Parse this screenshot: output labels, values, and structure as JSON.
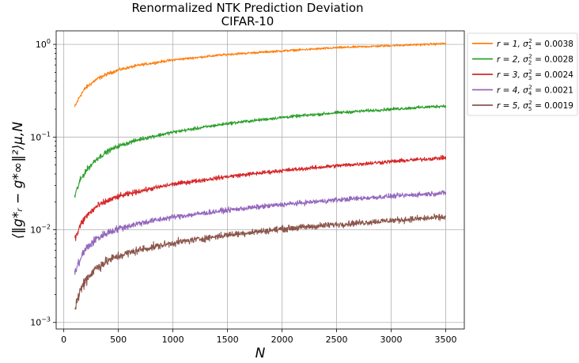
{
  "chart_data": {
    "type": "line",
    "title": "Renormalized NTK Prediction Deviation",
    "subtitle": "CIFAR-10",
    "xlabel": "N",
    "ylabel": "⟨‖g*ᵣ − g*∞‖²⟩μ,N",
    "xlim": [
      -70,
      3670
    ],
    "ylim": [
      0.00085,
      1.4
    ],
    "yscale": "log",
    "grid": true,
    "legend_position": "outside-right",
    "x_ticks": [
      0,
      500,
      1000,
      1500,
      2000,
      2500,
      3000,
      3500
    ],
    "x_tick_labels": [
      "0",
      "500",
      "1000",
      "1500",
      "2000",
      "2500",
      "3000",
      "3500"
    ],
    "y_ticks": [
      0.001,
      0.01,
      0.1,
      1
    ],
    "y_tick_labels": [
      {
        "base": "10",
        "exp": "−3"
      },
      {
        "base": "10",
        "exp": "−2"
      },
      {
        "base": "10",
        "exp": "−1"
      },
      {
        "base": "10",
        "exp": "0"
      }
    ],
    "x": [
      100,
      150,
      200,
      300,
      400,
      500,
      700,
      1000,
      1500,
      2000,
      2500,
      3000,
      3500
    ],
    "series": [
      {
        "name": "r = 1, σ₁² = 0.0038",
        "color": "#ff7f0e",
        "noise": 0.05,
        "values": [
          0.21,
          0.28,
          0.34,
          0.42,
          0.48,
          0.53,
          0.6,
          0.68,
          0.78,
          0.85,
          0.92,
          0.97,
          1.02
        ]
      },
      {
        "name": "r = 2, σ₂² = 0.0028",
        "color": "#2ca02c",
        "noise": 0.07,
        "values": [
          0.023,
          0.034,
          0.043,
          0.058,
          0.07,
          0.08,
          0.095,
          0.113,
          0.14,
          0.163,
          0.183,
          0.2,
          0.217
        ]
      },
      {
        "name": "r = 3, σ₃² = 0.0024",
        "color": "#d62728",
        "noise": 0.09,
        "values": [
          0.0078,
          0.011,
          0.0138,
          0.0178,
          0.0205,
          0.0228,
          0.0262,
          0.031,
          0.0375,
          0.0435,
          0.049,
          0.0545,
          0.06
        ]
      },
      {
        "name": "r = 4, σ₄² = 0.0021",
        "color": "#9467bd",
        "noise": 0.11,
        "values": [
          0.0034,
          0.0048,
          0.0062,
          0.008,
          0.0093,
          0.0103,
          0.0118,
          0.0137,
          0.0163,
          0.0187,
          0.021,
          0.023,
          0.025
        ]
      },
      {
        "name": "r = 5, σ₅² = 0.0019",
        "color": "#8c564b",
        "noise": 0.14,
        "values": [
          0.0014,
          0.0022,
          0.0029,
          0.0039,
          0.0046,
          0.0052,
          0.0061,
          0.0072,
          0.0088,
          0.0102,
          0.0114,
          0.0126,
          0.0137
        ]
      }
    ],
    "legend_labels": [
      {
        "r": "r = 1, ",
        "sigma": "σ",
        "sub": "1",
        "sup": "2",
        "val": " = 0.0038"
      },
      {
        "r": "r = 2, ",
        "sigma": "σ",
        "sub": "2",
        "sup": "2",
        "val": " = 0.0028"
      },
      {
        "r": "r = 3, ",
        "sigma": "σ",
        "sub": "3",
        "sup": "2",
        "val": " = 0.0024"
      },
      {
        "r": "r = 4, ",
        "sigma": "σ",
        "sub": "4",
        "sup": "2",
        "val": " = 0.0021"
      },
      {
        "r": "r = 5, ",
        "sigma": "σ",
        "sub": "5",
        "sup": "2",
        "val": " = 0.0019"
      }
    ]
  }
}
